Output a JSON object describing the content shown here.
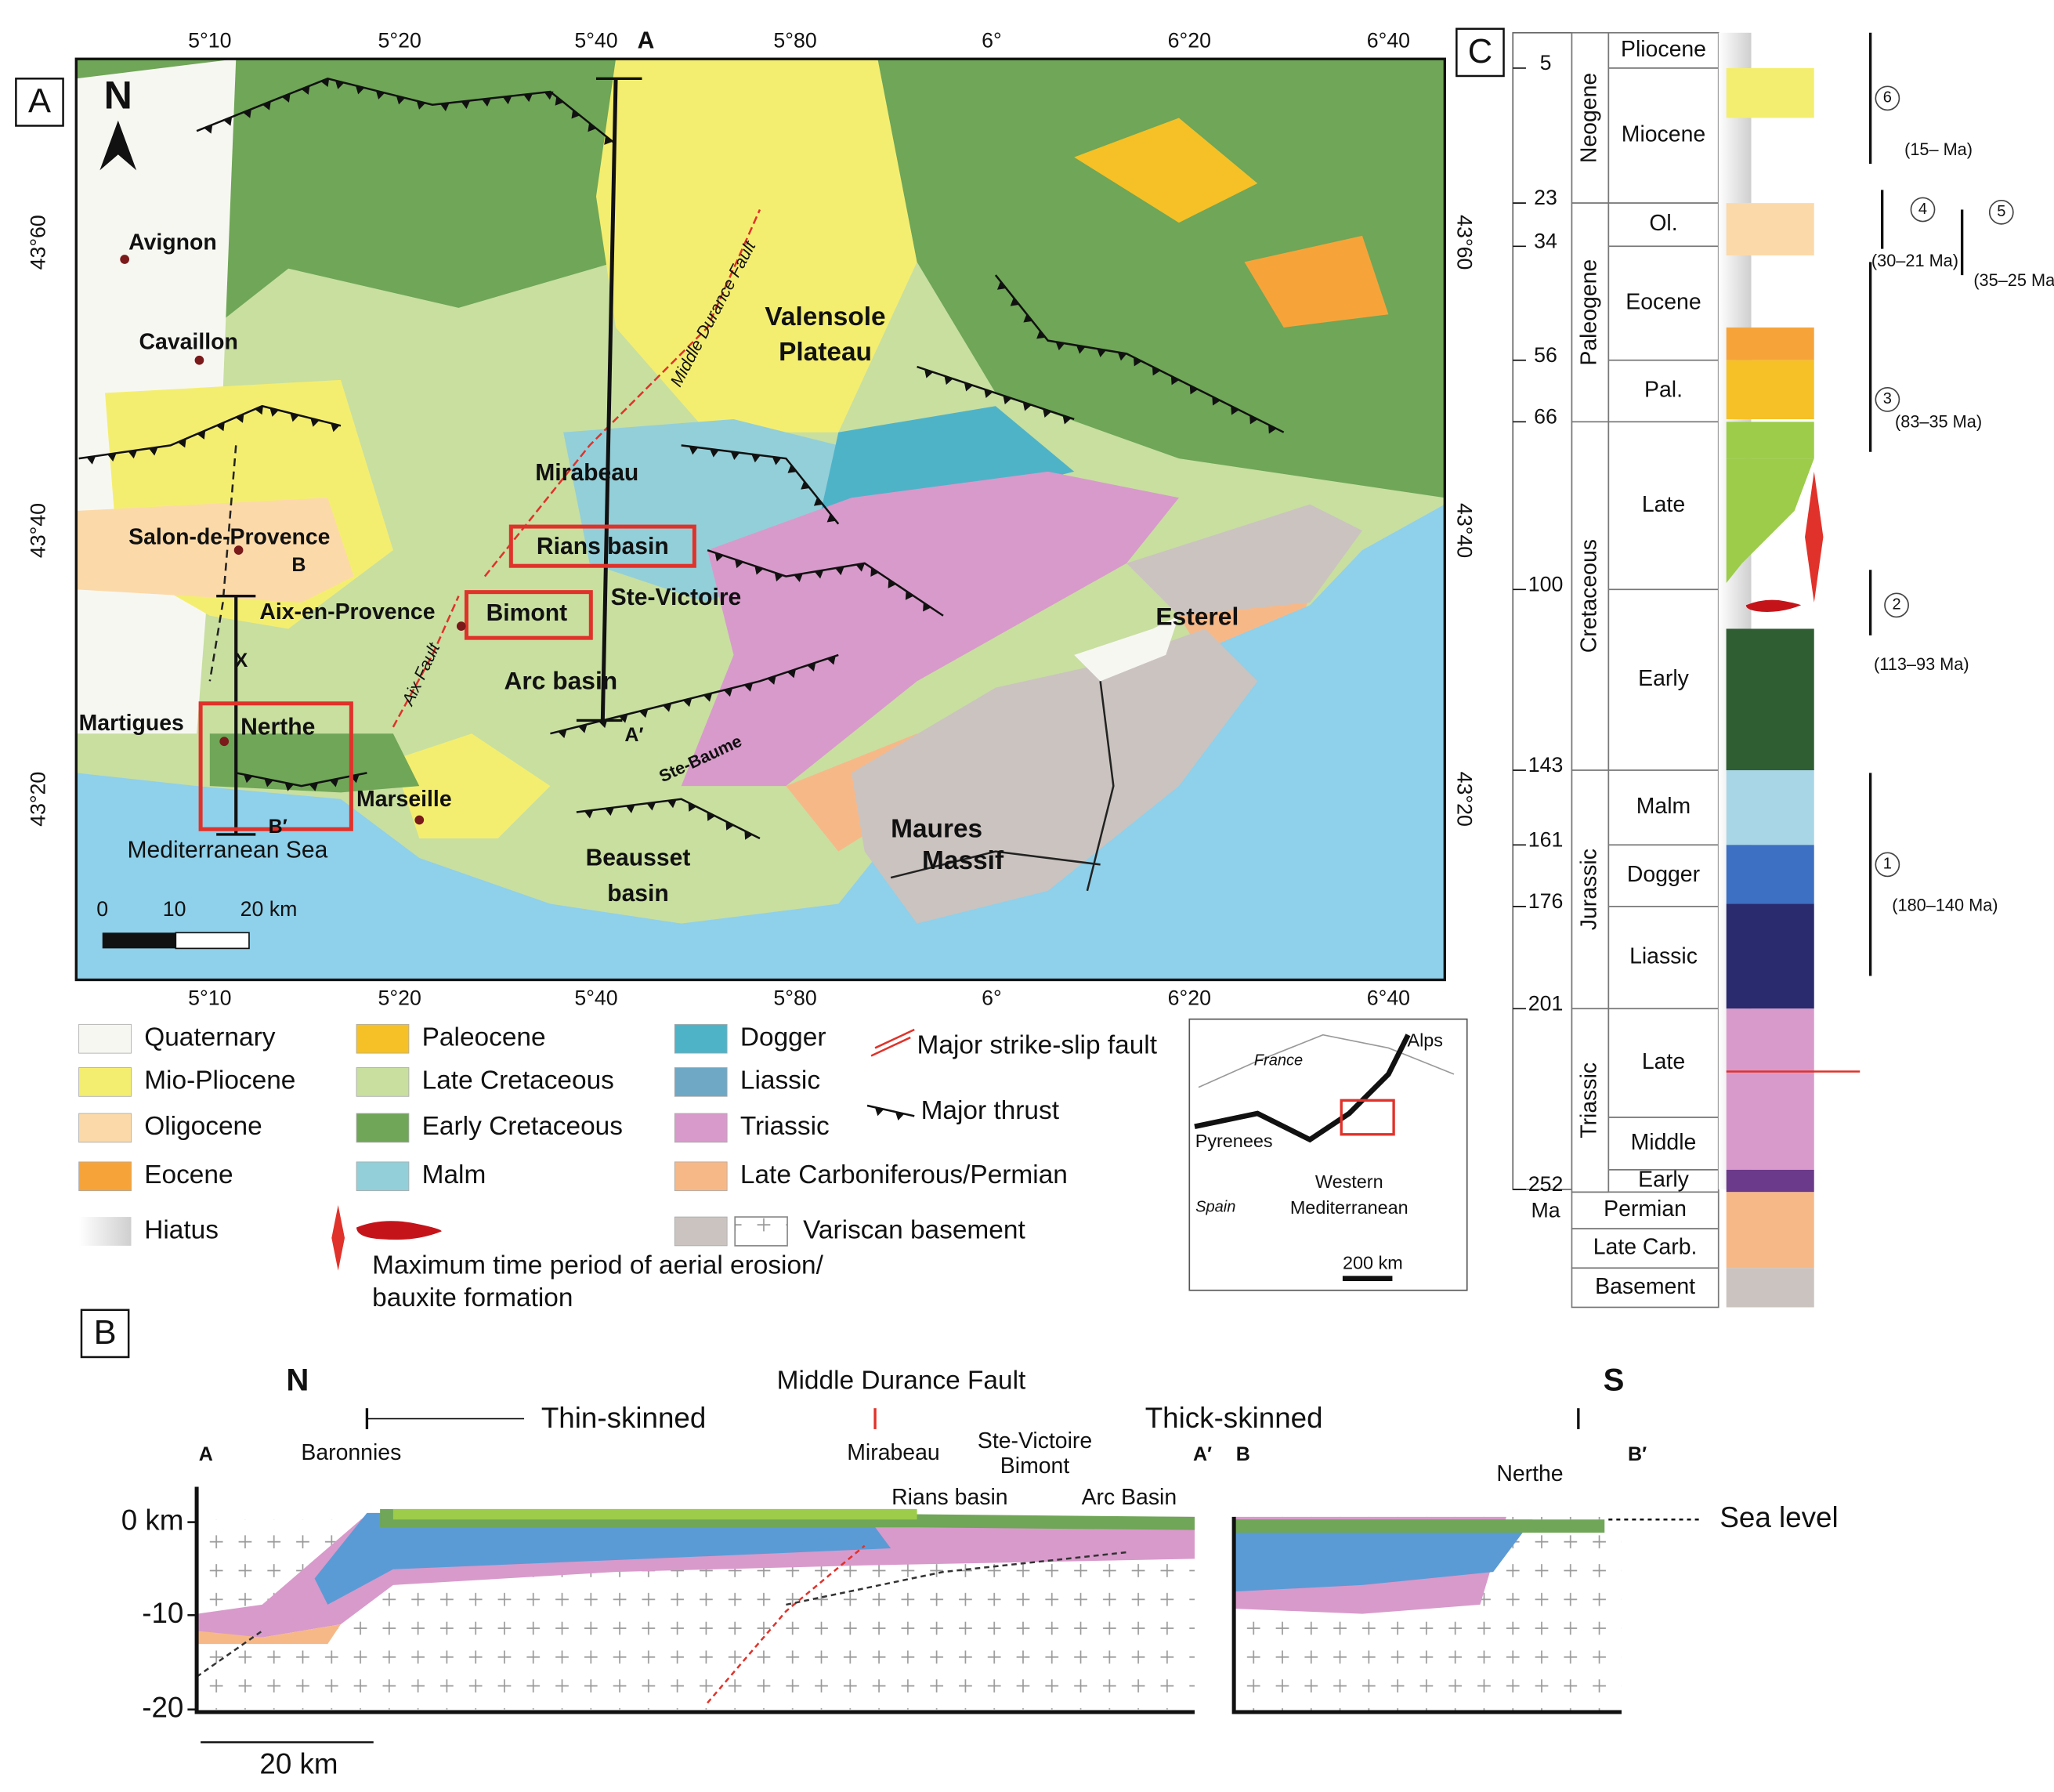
{
  "panel_labels": [
    "A",
    "B",
    "C"
  ],
  "map": {
    "lon_labels": [
      "5°10",
      "5°20",
      "5°40",
      "5°80",
      "6°",
      "6°20",
      "6°40"
    ],
    "lat_labels": [
      "43°60",
      "43°40",
      "43°20"
    ],
    "north": "N",
    "section_labels": [
      "A",
      "A′",
      "B",
      "B′",
      "X"
    ],
    "cities": [
      "Avignon",
      "Cavaillon",
      "Salon-de-Provence",
      "Aix-en-Provence",
      "Martigues",
      "Marseille"
    ],
    "places": [
      "Valensole",
      "Plateau",
      "Mirabeau",
      "Rians basin",
      "Bimont",
      "Ste-Victoire",
      "Arc basin",
      "Nerthe",
      "Esterel",
      "Maures",
      "Massif",
      "Beausset",
      "basin",
      "Ste-Baume"
    ],
    "faults": [
      "Middle Durance Fault",
      "Aix Fault"
    ],
    "sea": "Mediterranean Sea",
    "scale": [
      "0",
      "10",
      "20 km"
    ]
  },
  "legend": {
    "items": [
      {
        "label": "Quaternary",
        "color": "#f7f7f2"
      },
      {
        "label": "Mio-Pliocene",
        "color": "#f4ee70"
      },
      {
        "label": "Oligocene",
        "color": "#fcd9a9"
      },
      {
        "label": "Eocene",
        "color": "#f6a43a"
      },
      {
        "label": "Hiatus",
        "color": "#cfcfcf"
      },
      {
        "label": "Paleocene",
        "color": "#f5c127"
      },
      {
        "label": "Late Cretaceous",
        "color": "#c8dfa0"
      },
      {
        "label": "Early Cretaceous",
        "color": "#6fa657"
      },
      {
        "label": "Malm",
        "color": "#93cfd8"
      },
      {
        "label": "Dogger",
        "color": "#4fb3c8"
      },
      {
        "label": "Liassic",
        "color": "#6fa8c4"
      },
      {
        "label": "Triassic",
        "color": "#d89acb"
      },
      {
        "label": "Late Carboniferous/Permian",
        "color": "#f7b888"
      },
      {
        "label": "Variscan basement",
        "color": "#cbc3bf"
      }
    ],
    "symbols": [
      "Major strike-slip fault",
      "Major thrust"
    ],
    "erosion": [
      "Maximum time period of aerial erosion/",
      "bauxite formation"
    ]
  },
  "inset": {
    "labels": [
      "France",
      "Alps",
      "Pyrenees",
      "Spain",
      "Western",
      "Mediterranean",
      "200 km"
    ]
  },
  "section": {
    "ends": [
      "N",
      "S"
    ],
    "fault": "Middle Durance Fault",
    "styles": [
      "Thin-skinned",
      "Thick-skinned"
    ],
    "points": [
      "A",
      "A′",
      "B",
      "B′"
    ],
    "places": [
      "Baronnies",
      "Mirabeau",
      "Ste-Victoire",
      "Bimont",
      "Rians basin",
      "Arc Basin",
      "Nerthe"
    ],
    "sea_level": "Sea level",
    "depths": [
      "0 km",
      "-10",
      "-20"
    ],
    "scale": "20 km"
  },
  "column": {
    "ages": [
      5,
      23,
      34,
      56,
      66,
      100,
      143,
      161,
      176,
      201,
      252
    ],
    "unit": "Ma",
    "periods": [
      "Neogene",
      "Paleogene",
      "Cretaceous",
      "Jurassic",
      "Triassic"
    ],
    "epochs": [
      "Pliocene",
      "Miocene",
      "Ol.",
      "Eocene",
      "Pal.",
      "Late",
      "Early",
      "Malm",
      "Dogger",
      "Liassic",
      "Late",
      "Middle",
      "Early",
      "Permian",
      "Late Carb.",
      "Basement"
    ],
    "events": [
      {
        "number": 6,
        "label": "(15– Ma)"
      },
      {
        "number": 4,
        "label": "(30–21 Ma)"
      },
      {
        "number": 5,
        "label": "(35–25 Ma)"
      },
      {
        "number": 3,
        "label": "(83–35 Ma)"
      },
      {
        "number": 2,
        "label": "(113–93 Ma)"
      },
      {
        "number": 1,
        "label": "(180–140 Ma)"
      }
    ]
  }
}
